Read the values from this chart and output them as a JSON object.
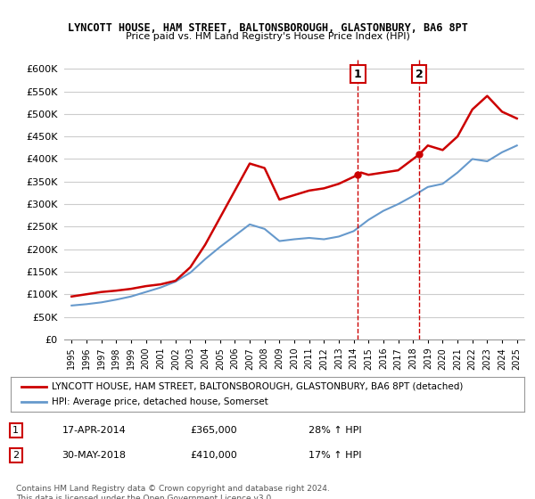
{
  "title": "LYNCOTT HOUSE, HAM STREET, BALTONSBOROUGH, GLASTONBURY, BA6 8PT",
  "subtitle": "Price paid vs. HM Land Registry's House Price Index (HPI)",
  "red_label": "LYNCOTT HOUSE, HAM STREET, BALTONSBOROUGH, GLASTONBURY, BA6 8PT (detached)",
  "blue_label": "HPI: Average price, detached house, Somerset",
  "footnote": "Contains HM Land Registry data © Crown copyright and database right 2024.\nThis data is licensed under the Open Government Licence v3.0.",
  "sale1_label": "1",
  "sale1_date": "17-APR-2014",
  "sale1_price": "£365,000",
  "sale1_hpi": "28% ↑ HPI",
  "sale1_x": 2014.29,
  "sale1_y": 365000,
  "sale2_label": "2",
  "sale2_date": "30-MAY-2018",
  "sale2_price": "£410,000",
  "sale2_hpi": "17% ↑ HPI",
  "sale2_x": 2018.41,
  "sale2_y": 410000,
  "ylim": [
    0,
    620000
  ],
  "yticks": [
    0,
    50000,
    100000,
    150000,
    200000,
    250000,
    300000,
    350000,
    400000,
    450000,
    500000,
    550000,
    600000
  ],
  "xlim": [
    1994.5,
    2025.5
  ],
  "red_color": "#cc0000",
  "blue_color": "#6699cc",
  "bg_color": "#ffffff",
  "grid_color": "#cccccc",
  "red_x": [
    1995,
    1996,
    1997,
    1998,
    1999,
    2000,
    2001,
    2002,
    2003,
    2004,
    2005,
    2006,
    2007,
    2008,
    2009,
    2010,
    2011,
    2012,
    2013,
    2014.29,
    2014.5,
    2015,
    2016,
    2017,
    2018.41,
    2019,
    2020,
    2021,
    2022,
    2023,
    2024,
    2025
  ],
  "red_y": [
    95000,
    100000,
    105000,
    108000,
    112000,
    118000,
    122000,
    130000,
    160000,
    210000,
    270000,
    330000,
    390000,
    380000,
    310000,
    320000,
    330000,
    335000,
    345000,
    365000,
    370000,
    365000,
    370000,
    375000,
    410000,
    430000,
    420000,
    450000,
    510000,
    540000,
    505000,
    490000
  ],
  "blue_x": [
    1995,
    1996,
    1997,
    1998,
    1999,
    2000,
    2001,
    2002,
    2003,
    2004,
    2005,
    2006,
    2007,
    2008,
    2009,
    2010,
    2011,
    2012,
    2013,
    2014,
    2015,
    2016,
    2017,
    2018,
    2019,
    2020,
    2021,
    2022,
    2023,
    2024,
    2025
  ],
  "blue_y": [
    75000,
    78000,
    82000,
    88000,
    95000,
    105000,
    115000,
    128000,
    148000,
    178000,
    205000,
    230000,
    255000,
    245000,
    218000,
    222000,
    225000,
    222000,
    228000,
    240000,
    265000,
    285000,
    300000,
    318000,
    338000,
    345000,
    370000,
    400000,
    395000,
    415000,
    430000
  ]
}
